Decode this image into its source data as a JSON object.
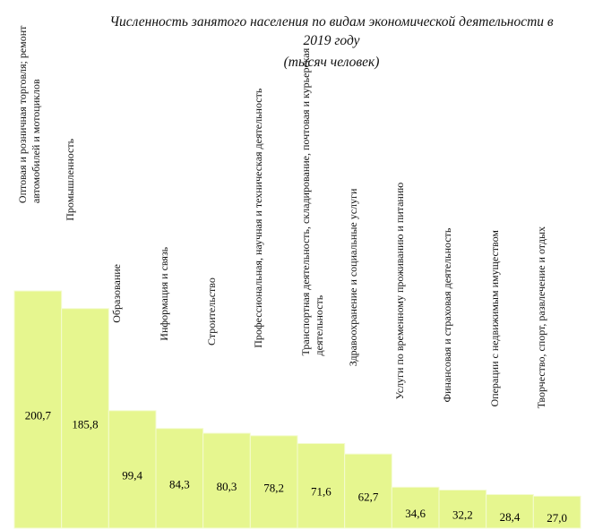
{
  "chart_data": {
    "type": "bar",
    "title": "Численность занятого населения по видам экономической деятельности в 2019 году",
    "subtitle": "(тысяч человек)",
    "categories": [
      "Оптовая и розничная торговля; ремонт автомобилей и мотоциклов",
      "Промышленность",
      "Образование",
      "Информация и связь",
      "Строительство",
      "Профессиональная, научная и техническая деятельность",
      "Транспортная деятельность, складирование, почтовая и курьерская деятельность",
      "Здравоохранение и социальные услуги",
      "Услуги по временному проживанию и питанию",
      "Финансовая и страховая деятельность",
      "Операции с недвижимым имуществом",
      "Творчество, спорт, развлечение и отдых"
    ],
    "values": [
      200.7,
      185.8,
      99.4,
      84.3,
      80.3,
      78.2,
      71.6,
      62.7,
      34.6,
      32.2,
      28.4,
      27.0
    ],
    "value_labels": [
      "200,7",
      "185,8",
      "99,4",
      "84,3",
      "80,3",
      "78,2",
      "71,6",
      "62,7",
      "34,6",
      "32,2",
      "28,4",
      "27,0"
    ],
    "color": "#e6f68f",
    "ylim": [
      0,
      225
    ]
  }
}
